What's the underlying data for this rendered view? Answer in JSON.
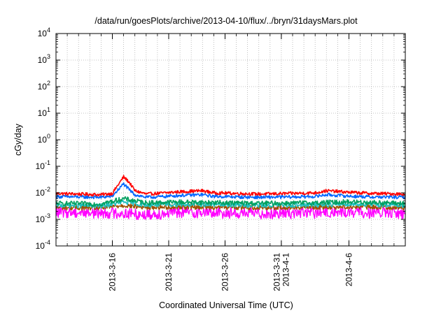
{
  "chart_data": {
    "type": "line",
    "title": "/data/run/goesPlots/archive/2013-04-10/flux/../bryn/31daysMars.plot",
    "xlabel": "Coordinated Universal Time (UTC)",
    "ylabel": "cGy/day",
    "y_scale": "log",
    "ylim": [
      0.0001,
      10000
    ],
    "xlim": [
      "2013-03-11",
      "2013-04-11"
    ],
    "grid": true,
    "x_ticks": [
      {
        "date": "2013-03-16",
        "label": [
          "2013-3-16"
        ]
      },
      {
        "date": "2013-03-21",
        "label": [
          "2013-3-21"
        ]
      },
      {
        "date": "2013-03-26",
        "label": [
          "2013-3-26"
        ]
      },
      {
        "date": "2013-03-31",
        "label": [
          "2013-3-31",
          "2013-4-1"
        ]
      },
      {
        "date": "2013-04-06",
        "label": [
          "2013-4-6"
        ]
      }
    ],
    "y_ticks": [
      {
        "value": 0.0001,
        "base": "10",
        "exp": "-4"
      },
      {
        "value": 0.001,
        "base": "10",
        "exp": "-3"
      },
      {
        "value": 0.01,
        "base": "10",
        "exp": "-2"
      },
      {
        "value": 0.1,
        "base": "10",
        "exp": "-1"
      },
      {
        "value": 1,
        "base": "10",
        "exp": "0"
      },
      {
        "value": 10,
        "base": "10",
        "exp": "1"
      },
      {
        "value": 100,
        "base": "10",
        "exp": "2"
      },
      {
        "value": 1000,
        "base": "10",
        "exp": "3"
      },
      {
        "value": 10000,
        "base": "10",
        "exp": "4"
      }
    ],
    "series": [
      {
        "color": "#ff0000",
        "x": [
          "2013-03-11",
          "2013-03-13",
          "2013-03-15",
          "2013-03-16",
          "2013-03-17",
          "2013-03-17.5",
          "2013-03-18",
          "2013-03-19",
          "2013-03-20",
          "2013-03-22",
          "2013-03-24",
          "2013-03-25",
          "2013-03-27",
          "2013-03-29",
          "2013-04-01",
          "2013-04-03",
          "2013-04-04",
          "2013-04-06",
          "2013-04-08",
          "2013-04-11"
        ],
        "values": [
          0.0095,
          0.009,
          0.0085,
          0.0095,
          0.04,
          0.025,
          0.012,
          0.009,
          0.0095,
          0.011,
          0.012,
          0.01,
          0.0095,
          0.009,
          0.0095,
          0.01,
          0.012,
          0.0105,
          0.0095,
          0.009
        ]
      },
      {
        "color": "#0066ff",
        "x": [
          "2013-03-11",
          "2013-03-13",
          "2013-03-15",
          "2013-03-16",
          "2013-03-17",
          "2013-03-17.5",
          "2013-03-18",
          "2013-03-19",
          "2013-03-20",
          "2013-03-22",
          "2013-03-24",
          "2013-03-25",
          "2013-03-27",
          "2013-03-29",
          "2013-04-01",
          "2013-04-03",
          "2013-04-04",
          "2013-04-06",
          "2013-04-08",
          "2013-04-11"
        ],
        "values": [
          0.0072,
          0.007,
          0.0068,
          0.0075,
          0.022,
          0.013,
          0.0085,
          0.0068,
          0.007,
          0.008,
          0.0085,
          0.0074,
          0.007,
          0.0068,
          0.007,
          0.0073,
          0.0085,
          0.0075,
          0.007,
          0.0068
        ]
      },
      {
        "color": "#00a060",
        "x": [
          "2013-03-11",
          "2013-03-15",
          "2013-03-17",
          "2013-03-19",
          "2013-03-22",
          "2013-03-25",
          "2013-03-29",
          "2013-04-03",
          "2013-04-06",
          "2013-04-11"
        ],
        "values": [
          0.004,
          0.0038,
          0.006,
          0.0042,
          0.0045,
          0.0043,
          0.004,
          0.0042,
          0.0046,
          0.004
        ]
      },
      {
        "color": "#20c0c0",
        "x": [
          "2013-03-11",
          "2013-03-15",
          "2013-03-17",
          "2013-03-19",
          "2013-03-22",
          "2013-03-25",
          "2013-03-29",
          "2013-04-03",
          "2013-04-06",
          "2013-04-11"
        ],
        "values": [
          0.0034,
          0.0032,
          0.0045,
          0.0035,
          0.0037,
          0.0036,
          0.0034,
          0.0035,
          0.0038,
          0.0034
        ]
      },
      {
        "color": "#a05000",
        "x": [
          "2013-03-11",
          "2013-03-15",
          "2013-03-17",
          "2013-03-19",
          "2013-03-22",
          "2013-03-25",
          "2013-03-29",
          "2013-04-03",
          "2013-04-06",
          "2013-04-11"
        ],
        "values": [
          0.0028,
          0.0027,
          0.0034,
          0.0028,
          0.003,
          0.0029,
          0.0028,
          0.0029,
          0.003,
          0.0028
        ]
      },
      {
        "color": "#ff00ff",
        "x": [
          "2013-03-11",
          "2013-03-15",
          "2013-03-17",
          "2013-03-19",
          "2013-03-22",
          "2013-03-25",
          "2013-03-29",
          "2013-04-03",
          "2013-04-06",
          "2013-04-11"
        ],
        "values": [
          0.0019,
          0.0018,
          0.0017,
          0.0015,
          0.0019,
          0.0018,
          0.0017,
          0.0018,
          0.0019,
          0.0017
        ]
      }
    ]
  }
}
